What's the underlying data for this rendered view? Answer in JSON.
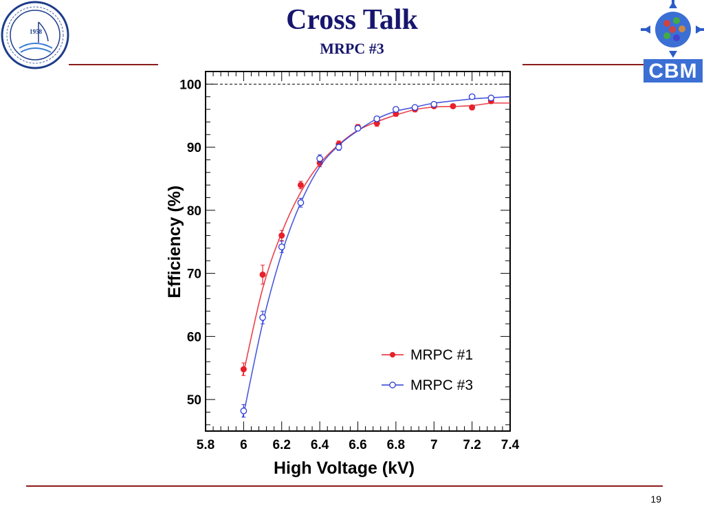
{
  "slide": {
    "title": "Cross Talk",
    "subtitle": "MRPC #3",
    "page_number": "19",
    "colors": {
      "title": "#17166e",
      "rule": "#8b1a1a"
    }
  },
  "logos": {
    "left": {
      "icon": "ustc-seal-icon",
      "year": "1958",
      "color": "#1d3c8a"
    },
    "right": {
      "icon": "cbm-logo-icon",
      "text": "CBM",
      "color": "#3b6fd4"
    }
  },
  "chart_data": {
    "type": "scatter",
    "xlabel": "High Voltage (kV)",
    "ylabel": "Efficiency (%)",
    "xlim": [
      5.8,
      7.4
    ],
    "ylim": [
      45,
      102
    ],
    "x_ticks": [
      "5.8",
      "6",
      "6.2",
      "6.4",
      "6.6",
      "6.8",
      "7",
      "7.2",
      "7.4"
    ],
    "x_tick_values": [
      5.8,
      6.0,
      6.2,
      6.4,
      6.6,
      6.8,
      7.0,
      7.2,
      7.4
    ],
    "y_ticks": [
      "50",
      "60",
      "70",
      "80",
      "90",
      "100"
    ],
    "y_tick_values": [
      50,
      60,
      70,
      80,
      90,
      100
    ],
    "reference_line": 100,
    "legend_position": "bottom-right",
    "series": [
      {
        "name": "MRPC #1",
        "marker": "filled-circle",
        "color": "#e8202a",
        "x": [
          6.0,
          6.1,
          6.2,
          6.3,
          6.4,
          6.5,
          6.6,
          6.7,
          6.8,
          6.9,
          7.0,
          7.1,
          7.2,
          7.3
        ],
        "y": [
          54.8,
          69.8,
          76.0,
          84.0,
          87.5,
          90.5,
          93.2,
          93.8,
          95.3,
          96.0,
          96.5,
          96.5,
          96.3,
          97.3
        ],
        "err": [
          1.0,
          1.5,
          0.8,
          0.6,
          0.6,
          0.5,
          0.4,
          0.5,
          0.4,
          0.4,
          0.3,
          0.3,
          0.3,
          0.3
        ],
        "fit_plateau": 97.0
      },
      {
        "name": "MRPC #3",
        "marker": "open-circle",
        "color": "#2a3bd6",
        "x": [
          6.0,
          6.1,
          6.2,
          6.3,
          6.4,
          6.5,
          6.6,
          6.7,
          6.8,
          6.9,
          7.0,
          7.2,
          7.3
        ],
        "y": [
          48.2,
          63.0,
          74.2,
          81.2,
          88.2,
          90.0,
          93.0,
          94.5,
          96.0,
          96.3,
          96.8,
          98.0,
          97.8
        ],
        "err": [
          1.0,
          1.0,
          0.9,
          0.7,
          0.6,
          0.5,
          0.4,
          0.4,
          0.4,
          0.3,
          0.3,
          0.3,
          0.3
        ],
        "fit_plateau": 98.0
      }
    ]
  }
}
